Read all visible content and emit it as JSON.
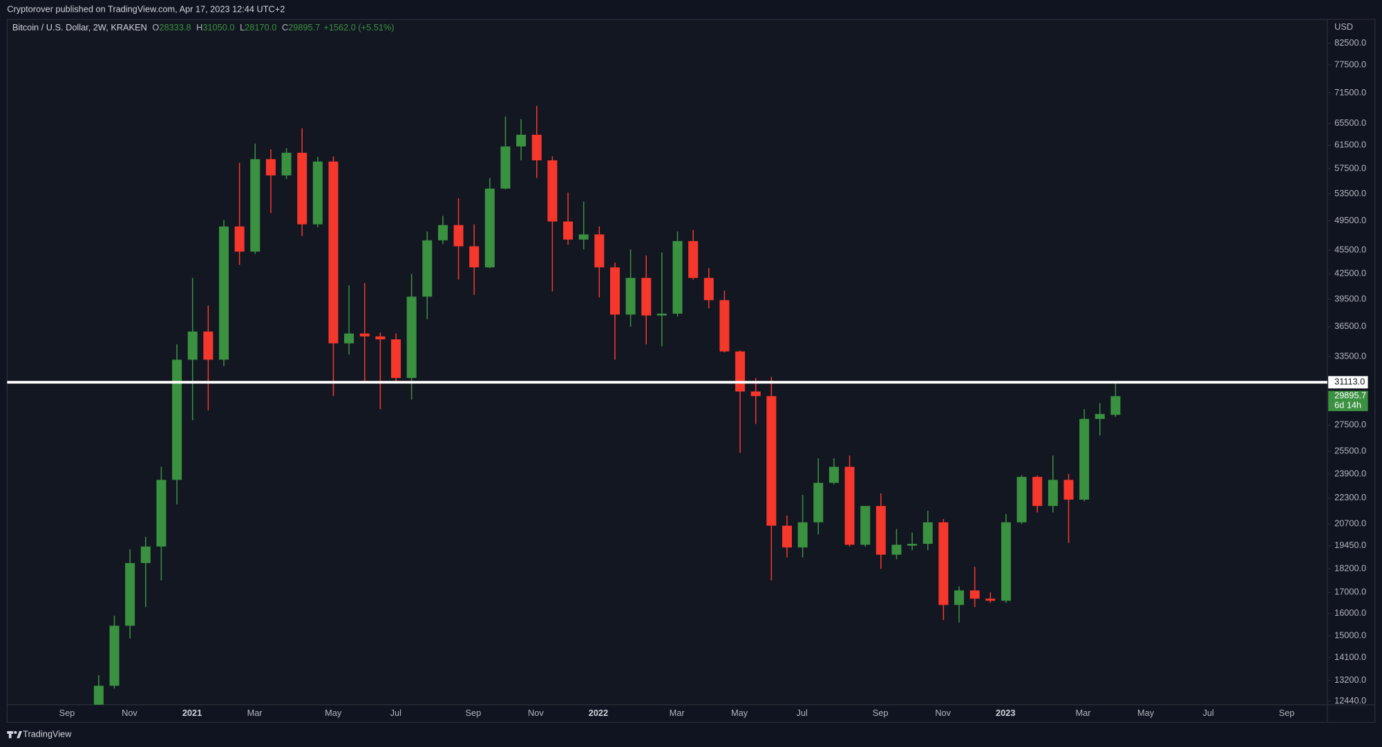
{
  "header": "Cryptorover published on TradingView.com, Apr 17, 2023 12:44 UTC+2",
  "footer": "TradingView",
  "chart_data": {
    "type": "candlestick",
    "legend": {
      "symbol": "Bitcoin / U.S. Dollar, 2W, KRAKEN",
      "o_prefix": "O",
      "o": "28333.8",
      "h_prefix": "H",
      "h": "31050.0",
      "l_prefix": "L",
      "l": "28170.0",
      "c_prefix": "C",
      "c": "29895.7",
      "change": "+1562.0 (+5.51%)"
    },
    "y_unit": "USD",
    "log_scale": true,
    "grid": false,
    "up_color": "#3a9140",
    "down_color": "#f5372c",
    "x": [
      0,
      1,
      2,
      3,
      4,
      5,
      6,
      7,
      8,
      9,
      10,
      11,
      12,
      13,
      14,
      15,
      16,
      17,
      18,
      19,
      20,
      21,
      22,
      23,
      24,
      25,
      26,
      27,
      28,
      29,
      30,
      31,
      32,
      33,
      34,
      35,
      36,
      37,
      38,
      39,
      40,
      41,
      42,
      43,
      44,
      45,
      46,
      47,
      48,
      49,
      50,
      51,
      52,
      53,
      54,
      55,
      56,
      57,
      58,
      59,
      60,
      61,
      62,
      63,
      64,
      65
    ],
    "open": [
      12300,
      13000,
      15450,
      18500,
      19400,
      23500,
      33200,
      36000,
      33200,
      48700,
      45300,
      59100,
      56400,
      60200,
      49000,
      58700,
      34800,
      35800,
      35500,
      35200,
      31500,
      39800,
      46800,
      48900,
      46000,
      43300,
      54300,
      61300,
      63400,
      58900,
      49400,
      46900,
      47600,
      43300,
      37800,
      42000,
      37700,
      37900,
      46700,
      42000,
      39400,
      34000,
      30300,
      29900,
      20600,
      19350,
      20800,
      23300,
      24400,
      19500,
      21800,
      18950,
      19450,
      19550,
      20800,
      16400,
      17100,
      16700,
      16600,
      20800,
      23700,
      21800,
      23500,
      22200,
      28000,
      28333.8
    ],
    "high": [
      13400,
      15900,
      19250,
      19950,
      24400,
      34700,
      42000,
      38800,
      49600,
      58500,
      61800,
      60800,
      61000,
      64600,
      59500,
      59600,
      41100,
      41400,
      35900,
      35800,
      42500,
      48000,
      50200,
      52800,
      49000,
      56000,
      66800,
      66300,
      68900,
      59600,
      53700,
      52300,
      48700,
      43900,
      45600,
      44800,
      45200,
      48000,
      48200,
      43200,
      40500,
      34100,
      31500,
      31600,
      21200,
      22500,
      25000,
      25000,
      25200,
      21800,
      22600,
      20400,
      20200,
      21500,
      21000,
      17300,
      18300,
      17000,
      21300,
      23800,
      23800,
      25200,
      23900,
      28800,
      29300,
      31050
    ],
    "low": [
      12000,
      12900,
      14900,
      16300,
      17600,
      21900,
      27900,
      28700,
      32600,
      43600,
      45000,
      50600,
      55800,
      47400,
      48600,
      29900,
      33700,
      31000,
      28800,
      31000,
      29600,
      37300,
      46300,
      41800,
      40000,
      43200,
      54200,
      58900,
      56000,
      40400,
      46200,
      45600,
      39700,
      33200,
      36500,
      34700,
      34500,
      37600,
      41800,
      38500,
      33900,
      25400,
      27600,
      17600,
      18800,
      18800,
      20100,
      23200,
      19400,
      19400,
      18200,
      18700,
      19200,
      19200,
      15700,
      15600,
      16300,
      16500,
      16500,
      20700,
      21400,
      21400,
      19600,
      22100,
      26700,
      28170
    ],
    "close": [
      13000,
      15450,
      18500,
      19400,
      23500,
      33200,
      36000,
      33200,
      48700,
      45300,
      59100,
      56400,
      60200,
      49000,
      58700,
      34800,
      35800,
      35500,
      35200,
      31500,
      39800,
      46800,
      48900,
      46000,
      43300,
      54300,
      61300,
      63400,
      58900,
      49400,
      46900,
      47600,
      43300,
      37800,
      42000,
      37700,
      37900,
      46700,
      42000,
      39400,
      34000,
      30300,
      29900,
      20600,
      19350,
      20800,
      23300,
      24400,
      19500,
      21800,
      18950,
      19500,
      19550,
      20800,
      16400,
      17100,
      16700,
      16600,
      20800,
      23700,
      21800,
      23500,
      22200,
      28000,
      28400,
      29895.7
    ],
    "last_price_label": "29895.7",
    "countdown": "6d 14h",
    "hline": {
      "value": 31113,
      "label": "31113.0",
      "color": "#ffffff"
    },
    "xlim": [
      -5.86,
      78.54
    ],
    "xticks": [
      {
        "value": -2.03,
        "label": "Sep"
      },
      {
        "value": 1.97,
        "label": "Nov"
      },
      {
        "value": 5.97,
        "label": "2021"
      },
      {
        "value": 9.97,
        "label": "Mar"
      },
      {
        "value": 14.99,
        "label": "May"
      },
      {
        "value": 18.99,
        "label": "Jul"
      },
      {
        "value": 23.94,
        "label": "Sep"
      },
      {
        "value": 27.94,
        "label": "Nov"
      },
      {
        "value": 31.94,
        "label": "2022"
      },
      {
        "value": 36.96,
        "label": "Mar"
      },
      {
        "value": 40.96,
        "label": "May"
      },
      {
        "value": 44.96,
        "label": "Jul"
      },
      {
        "value": 49.97,
        "label": "Sep"
      },
      {
        "value": 53.97,
        "label": "Nov"
      },
      {
        "value": 57.97,
        "label": "2023"
      },
      {
        "value": 62.93,
        "label": "Mar"
      },
      {
        "value": 66.93,
        "label": "May"
      },
      {
        "value": 70.93,
        "label": "Jul"
      },
      {
        "value": 75.94,
        "label": "Sep"
      }
    ],
    "ylim": [
      12310,
      88340
    ],
    "yticks": [
      {
        "value": 82500,
        "label": "82500.0"
      },
      {
        "value": 77500,
        "label": "77500.0"
      },
      {
        "value": 71500,
        "label": "71500.0"
      },
      {
        "value": 65500,
        "label": "65500.0"
      },
      {
        "value": 61500,
        "label": "61500.0"
      },
      {
        "value": 57500,
        "label": "57500.0"
      },
      {
        "value": 53500,
        "label": "53500.0"
      },
      {
        "value": 49500,
        "label": "49500.0"
      },
      {
        "value": 45500,
        "label": "45500.0"
      },
      {
        "value": 42500,
        "label": "42500.0"
      },
      {
        "value": 39500,
        "label": "39500.0"
      },
      {
        "value": 36500,
        "label": "36500.0"
      },
      {
        "value": 33500,
        "label": "33500.0"
      },
      {
        "value": 27500,
        "label": "27500.0"
      },
      {
        "value": 25500,
        "label": "25500.0"
      },
      {
        "value": 23900,
        "label": "23900.0"
      },
      {
        "value": 22300,
        "label": "22300.0"
      },
      {
        "value": 20700,
        "label": "20700.0"
      },
      {
        "value": 19450,
        "label": "19450.0"
      },
      {
        "value": 18200,
        "label": "18200.0"
      },
      {
        "value": 17000,
        "label": "17000.0"
      },
      {
        "value": 16000,
        "label": "16000.0"
      },
      {
        "value": 15000,
        "label": "15000.0"
      },
      {
        "value": 14100,
        "label": "14100.0"
      },
      {
        "value": 13200,
        "label": "13200.0"
      },
      {
        "value": 12440,
        "label": "12440.0"
      }
    ]
  }
}
